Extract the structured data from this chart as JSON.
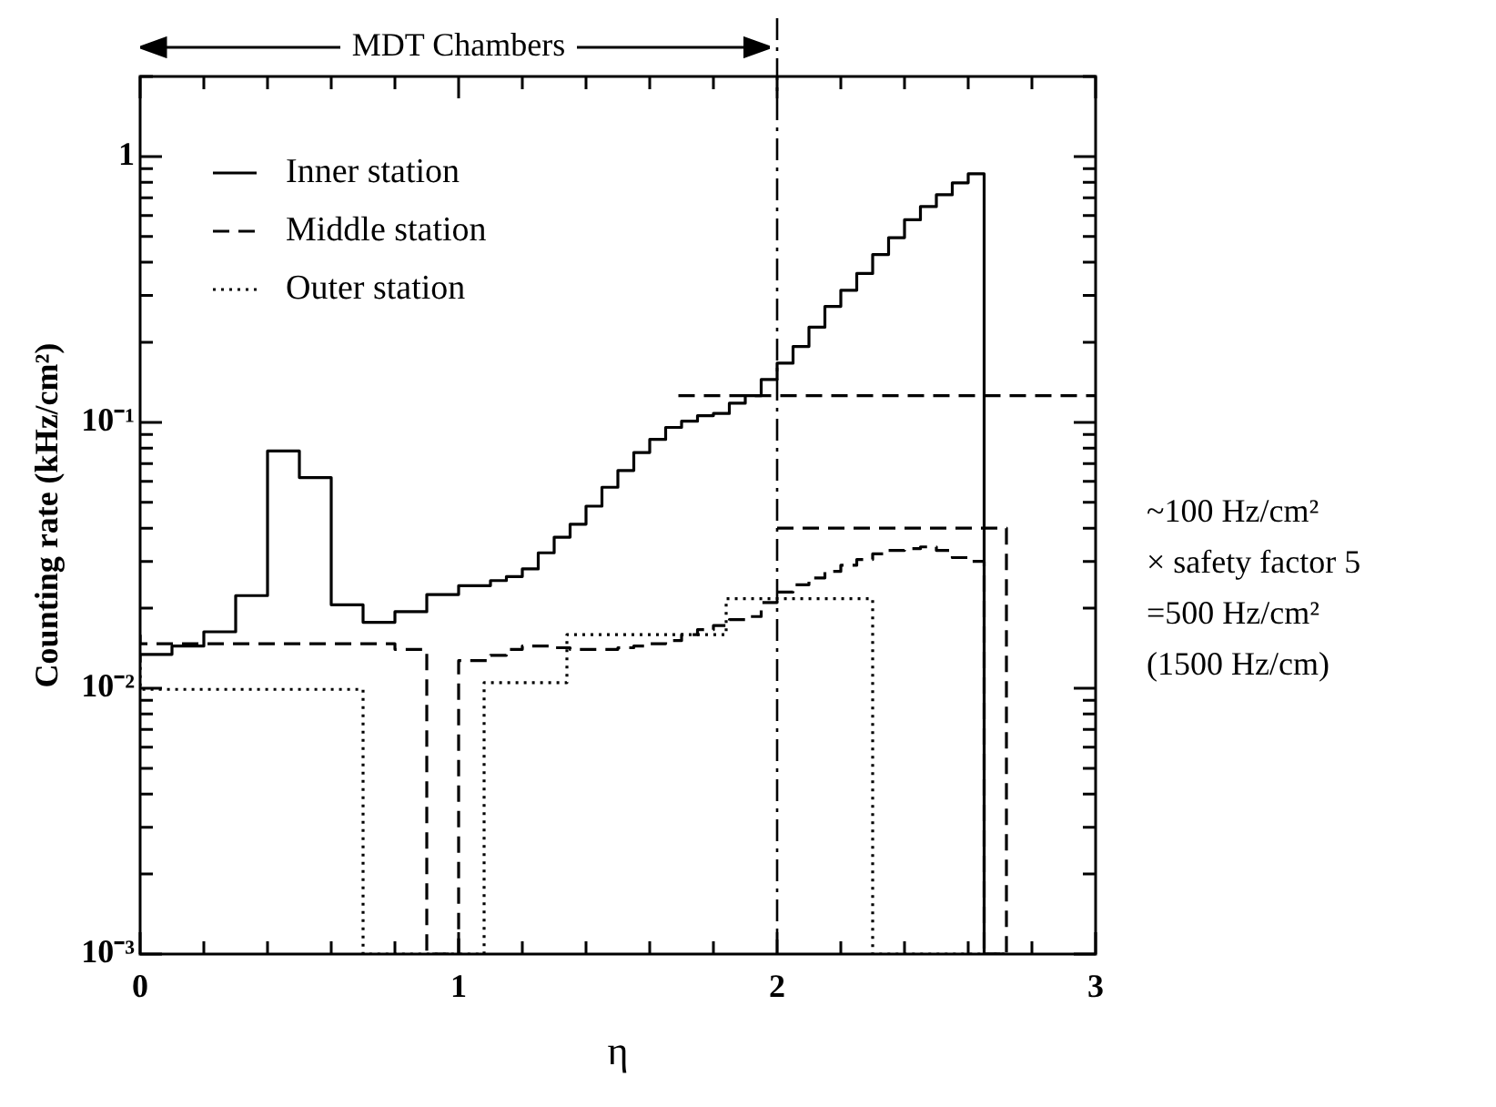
{
  "chart_data": {
    "type": "step",
    "xlabel": "η",
    "ylabel": "Counting rate (kHz/cm²)",
    "xlim": [
      0,
      3
    ],
    "xticks": [
      0,
      {
        "value": 0.2,
        "label": null
      },
      {
        "value": 0.4,
        "label": null
      },
      {
        "value": 0.6,
        "label": null
      },
      {
        "value": 0.8,
        "label": null
      },
      1,
      {
        "value": 1.2,
        "label": null
      },
      {
        "value": 1.4,
        "label": null
      },
      {
        "value": 1.6,
        "label": null
      },
      {
        "value": 1.8,
        "label": null
      },
      2,
      {
        "value": 2.2,
        "label": null
      },
      {
        "value": 2.4,
        "label": null
      },
      {
        "value": 2.6,
        "label": null
      },
      {
        "value": 2.8,
        "label": null
      },
      3
    ],
    "ylim": [
      0.001,
      2
    ],
    "yticks": [
      {
        "value": 0.001,
        "label": "10⁻³"
      },
      {
        "value": 0.002,
        "label": null
      },
      {
        "value": 0.003,
        "label": null
      },
      {
        "value": 0.004,
        "label": null
      },
      {
        "value": 0.005,
        "label": null
      },
      {
        "value": 0.006,
        "label": null
      },
      {
        "value": 0.007,
        "label": null
      },
      {
        "value": 0.008,
        "label": null
      },
      {
        "value": 0.009,
        "label": null
      },
      {
        "value": 0.01,
        "label": "10⁻²"
      },
      {
        "value": 0.02,
        "label": null
      },
      {
        "value": 0.03,
        "label": null
      },
      {
        "value": 0.04,
        "label": null
      },
      {
        "value": 0.05,
        "label": null
      },
      {
        "value": 0.06,
        "label": null
      },
      {
        "value": 0.07,
        "label": null
      },
      {
        "value": 0.08,
        "label": null
      },
      {
        "value": 0.09,
        "label": null
      },
      {
        "value": 0.1,
        "label": "10⁻¹"
      },
      {
        "value": 0.2,
        "label": null
      },
      {
        "value": 0.3,
        "label": null
      },
      {
        "value": 0.4,
        "label": null
      },
      {
        "value": 0.5,
        "label": null
      },
      {
        "value": 0.6,
        "label": null
      },
      {
        "value": 0.7,
        "label": null
      },
      {
        "value": 0.8,
        "label": null
      },
      {
        "value": 0.9,
        "label": null
      },
      1,
      {
        "value": 2,
        "label": null
      }
    ],
    "log": "y",
    "grid": false,
    "legend": "top left",
    "marker": "none",
    "annotations": [
      "MDT Chambers",
      "~100 Hz/cm²",
      "× safety factor 5",
      "=500 Hz/cm²",
      "(1500 Hz/cm)"
    ],
    "ref_lines": [
      {
        "axis": "x",
        "value": 2,
        "color": "#000000",
        "line_style": "dashed"
      }
    ],
    "series": [
      {
        "name": "Inner station",
        "type": "step",
        "color": "#000000",
        "line_style": "solid",
        "x": [
          0,
          0.1,
          0.2,
          0.3,
          0.4,
          0.5,
          0.6,
          0.7,
          0.8,
          0.9,
          1.0,
          1.1,
          1.15,
          1.2,
          1.25,
          1.3,
          1.35,
          1.4,
          1.45,
          1.5,
          1.55,
          1.6,
          1.65,
          1.7,
          1.75,
          1.8,
          1.85,
          1.9,
          1.95,
          2.0,
          2.05,
          2.1,
          2.15,
          2.2,
          2.25,
          2.3,
          2.35,
          2.4,
          2.45,
          2.5,
          2.55,
          2.6,
          2.65,
          2.7
        ],
        "values": [
          0.0125,
          0.0134,
          0.0144,
          0.0163,
          0.0223,
          0.078,
          0.062,
          0.0206,
          0.0177,
          0.0194,
          0.0225,
          0.0243,
          0.0254,
          0.0263,
          0.0281,
          0.0323,
          0.037,
          0.0414,
          0.0484,
          0.057,
          0.0659,
          0.077,
          0.0863,
          0.0957,
          0.101,
          0.106,
          0.108,
          0.118,
          0.126,
          0.145,
          0.167,
          0.193,
          0.228,
          0.273,
          0.314,
          0.363,
          0.428,
          0.495,
          0.578,
          0.648,
          0.718,
          0.796,
          0.861,
          0.001
        ]
      },
      {
        "name": "Middle station",
        "type": "step",
        "color": "#000000",
        "line_style": "dashed",
        "x": [
          0,
          0.8,
          0.9,
          1.0,
          1.1,
          1.15,
          1.2,
          1.25,
          1.3,
          1.35,
          1.4,
          1.45,
          1.5,
          1.55,
          1.6,
          1.65,
          1.7,
          1.75,
          1.8,
          1.85,
          1.9,
          1.95,
          2.0,
          2.05,
          2.1,
          2.15,
          2.2,
          2.25,
          2.3,
          2.35,
          2.4,
          2.45,
          2.5,
          2.55,
          2.6,
          2.65,
          2.72
        ],
        "values": [
          0.0159,
          0.0147,
          0.014,
          0.001,
          0.0127,
          0.0133,
          0.014,
          0.0144,
          0.0144,
          0.0142,
          0.014,
          0.014,
          0.014,
          0.0142,
          0.0144,
          0.0147,
          0.0151,
          0.0159,
          0.0166,
          0.0172,
          0.0181,
          0.0186,
          0.021,
          0.023,
          0.0245,
          0.026,
          0.0275,
          0.029,
          0.0305,
          0.032,
          0.033,
          0.0335,
          0.034,
          0.033,
          0.031,
          0.03,
          0.001
        ]
      },
      {
        "name": "Outer station",
        "type": "step",
        "color": "#000000",
        "line_style": "dotted",
        "x": [
          0,
          0.7,
          1.08,
          1.34,
          1.84,
          2.3,
          2.72
        ],
        "values": [
          0.012,
          0.0099,
          0.001,
          0.0105,
          0.0159,
          0.0217,
          0.001
        ]
      },
      {
        "type": "line",
        "color": "#000000",
        "line_style": "dashed",
        "x": [
          1.69,
          3
        ],
        "values": [
          0.126,
          0.126
        ]
      },
      {
        "type": "step",
        "color": "#000000",
        "line_style": "dashed",
        "x": [
          2,
          2.72,
          2.72
        ],
        "values": [
          0.04,
          0.04,
          0.001
        ]
      }
    ]
  }
}
